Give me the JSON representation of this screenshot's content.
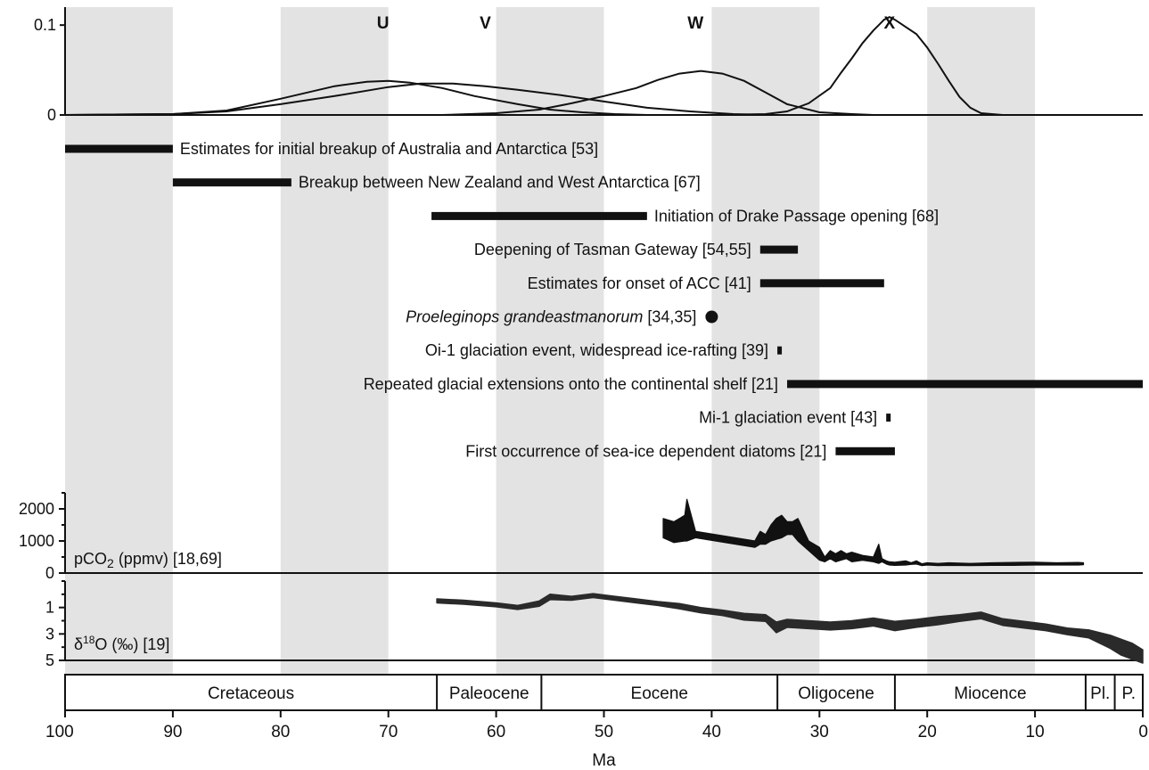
{
  "chart_data": {
    "type": "line",
    "x_axis": {
      "label": "Ma",
      "range": [
        100,
        0
      ],
      "ticks": [
        100,
        90,
        80,
        70,
        60,
        50,
        40,
        30,
        20,
        10,
        0
      ],
      "tick_labels": [
        "100",
        "90",
        "80",
        "70",
        "60",
        "50",
        "40",
        "30",
        "20",
        "10",
        "0"
      ],
      "reversed": true
    },
    "shaded_bands": [
      [
        100,
        90
      ],
      [
        80,
        70
      ],
      [
        60,
        50
      ],
      [
        40,
        30
      ],
      [
        20,
        10
      ]
    ],
    "shade_color": "#e3e3e3",
    "ink_color": "#111111",
    "density_panel": {
      "y_ticks": [
        0,
        0.1
      ],
      "y_tick_labels": [
        "0",
        "0.1"
      ],
      "ylim": [
        0,
        0.12
      ],
      "curves": [
        {
          "name": "U",
          "x": [
            100,
            90,
            85,
            80,
            75,
            72,
            70,
            68,
            65,
            62,
            58,
            55,
            52,
            49,
            46
          ],
          "y": [
            0,
            0.001,
            0.005,
            0.018,
            0.032,
            0.037,
            0.038,
            0.036,
            0.03,
            0.021,
            0.012,
            0.006,
            0.003,
            0.001,
            0
          ]
        },
        {
          "name": "V",
          "x": [
            100,
            90,
            85,
            80,
            75,
            70,
            67,
            64,
            61,
            58,
            54,
            50,
            46,
            42,
            38,
            35
          ],
          "y": [
            0,
            0.001,
            0.004,
            0.012,
            0.021,
            0.031,
            0.035,
            0.035,
            0.032,
            0.028,
            0.022,
            0.015,
            0.008,
            0.004,
            0.001,
            0
          ]
        },
        {
          "name": "W",
          "x": [
            65,
            60,
            56,
            53,
            50,
            47,
            45,
            43,
            41,
            39,
            37,
            35,
            33,
            30,
            27,
            25
          ],
          "y": [
            0,
            0.002,
            0.006,
            0.013,
            0.021,
            0.03,
            0.039,
            0.046,
            0.049,
            0.046,
            0.038,
            0.025,
            0.012,
            0.003,
            0.001,
            0
          ]
        },
        {
          "name": "X",
          "x": [
            40,
            35,
            33,
            31,
            29,
            28,
            27,
            26,
            25,
            24.5,
            24,
            23.5,
            23,
            22,
            21,
            20,
            19,
            18,
            17,
            16,
            15,
            14,
            13,
            12
          ],
          "y": [
            0,
            0.001,
            0.004,
            0.013,
            0.03,
            0.047,
            0.063,
            0.08,
            0.094,
            0.1,
            0.106,
            0.109,
            0.106,
            0.098,
            0.09,
            0.075,
            0.057,
            0.038,
            0.02,
            0.008,
            0.002,
            0.001,
            0,
            0
          ]
        }
      ],
      "curve_labels": [
        {
          "text": "U",
          "x": 70.5
        },
        {
          "text": "V",
          "x": 61.0
        },
        {
          "text": "W",
          "x": 41.5
        },
        {
          "text": "X",
          "x": 23.5
        }
      ]
    },
    "events": [
      {
        "text": "Estimates for initial breakup of Australia and Antarctica [53]",
        "start": 100,
        "end": 90,
        "label_side": "right",
        "italic": false
      },
      {
        "text": "Breakup between New Zealand and West Antarctica [67]",
        "start": 90,
        "end": 79,
        "label_side": "right",
        "italic": false
      },
      {
        "text": "Initiation of Drake Passage opening [68]",
        "start": 66,
        "end": 46,
        "label_side": "right",
        "italic": false
      },
      {
        "text": "Deepening of Tasman Gateway [54,55]",
        "start": 35.5,
        "end": 32,
        "label_side": "left",
        "italic": false
      },
      {
        "text": "Estimates for onset of ACC [41]",
        "start": 35.5,
        "end": 24,
        "label_side": "left",
        "italic": false
      },
      {
        "text": "Proeleginops grandeastmanorum",
        "suffix": " [34,35]",
        "point": 40,
        "label_side": "left",
        "italic": true
      },
      {
        "text": "Oi-1 glaciation event, widespread ice-rafting [39]",
        "start": 33.9,
        "end": 33.5,
        "label_side": "left",
        "italic": false
      },
      {
        "text": "Repeated glacial extensions onto the continental shelf [21]",
        "start": 33,
        "end": 0,
        "label_side": "left",
        "italic": false
      },
      {
        "text": "Mi-1 glaciation event [43]",
        "start": 23.8,
        "end": 23.4,
        "label_side": "left",
        "italic": false
      },
      {
        "text": "First occurrence of sea-ice dependent diatoms [21]",
        "start": 28.5,
        "end": 23,
        "label_side": "left",
        "italic": false
      }
    ],
    "co2_panel": {
      "label_main": "pCO",
      "label_sub": "2",
      "label_rest": " (ppmv) [18,69]",
      "y_ticks": [
        0,
        1000,
        2000
      ],
      "y_tick_labels": [
        "0",
        "1000",
        "2000"
      ],
      "ylim": [
        0,
        2500
      ],
      "x": [
        44.5,
        43.5,
        42.5,
        42.3,
        41.5,
        36,
        35.5,
        35,
        34.5,
        34,
        33.5,
        33,
        32.5,
        32,
        31,
        30,
        29.5,
        29,
        28.5,
        28,
        27.5,
        27,
        26,
        25,
        24.5,
        24.2,
        23.8,
        23.5,
        23,
        22,
        21.5,
        21,
        20.5,
        20,
        19,
        18,
        16,
        14,
        12,
        10,
        8,
        6,
        5.5
      ],
      "lower": [
        1100,
        950,
        1000,
        1000,
        1100,
        800,
        900,
        900,
        1000,
        1050,
        1100,
        1200,
        1200,
        1000,
        700,
        400,
        350,
        450,
        350,
        400,
        450,
        350,
        400,
        350,
        300,
        350,
        280,
        250,
        240,
        250,
        270,
        280,
        230,
        250,
        230,
        240,
        230,
        240,
        240,
        250,
        250,
        250,
        260
      ],
      "upper": [
        1700,
        1600,
        1800,
        2300,
        1300,
        1000,
        1300,
        1200,
        1500,
        1700,
        1800,
        1600,
        1600,
        1700,
        1000,
        800,
        500,
        700,
        600,
        700,
        600,
        650,
        550,
        500,
        900,
        450,
        380,
        350,
        340,
        380,
        320,
        380,
        290,
        320,
        300,
        320,
        300,
        320,
        330,
        340,
        320,
        330,
        320
      ]
    },
    "d18o_panel": {
      "label_main": "δ",
      "label_sup": "18",
      "label_rest": "O (‰) [19]",
      "y_ticks": [
        1,
        3,
        5
      ],
      "y_tick_labels": [
        "1",
        "3",
        "5"
      ],
      "ylim_top": -1,
      "ylim_bottom": 5,
      "x": [
        65.5,
        63,
        60,
        58,
        56,
        55,
        53,
        51,
        49,
        47,
        45,
        43,
        41,
        39,
        37,
        35,
        34,
        33,
        31,
        29,
        27,
        25,
        23,
        21,
        19,
        17,
        15,
        13,
        11,
        9,
        7,
        5,
        4,
        3,
        2,
        1,
        0
      ],
      "y": [
        0.5,
        0.6,
        0.8,
        1.0,
        0.7,
        0.2,
        0.3,
        0.1,
        0.3,
        0.5,
        0.7,
        0.9,
        1.2,
        1.4,
        1.7,
        1.8,
        2.5,
        2.2,
        2.3,
        2.4,
        2.3,
        2.1,
        2.4,
        2.2,
        2.0,
        1.8,
        1.6,
        2.1,
        2.3,
        2.5,
        2.8,
        3.0,
        3.3,
        3.6,
        4.0,
        4.3,
        4.7
      ],
      "spread": [
        0.3,
        0.3,
        0.3,
        0.3,
        0.4,
        0.4,
        0.3,
        0.3,
        0.3,
        0.3,
        0.3,
        0.4,
        0.4,
        0.4,
        0.5,
        0.5,
        0.8,
        0.6,
        0.6,
        0.6,
        0.6,
        0.6,
        0.7,
        0.6,
        0.6,
        0.5,
        0.5,
        0.5,
        0.5,
        0.5,
        0.5,
        0.6,
        0.8,
        1.0,
        1.2,
        1.2,
        1.0
      ]
    },
    "epochs": [
      {
        "name": "Cretaceous",
        "start": 100,
        "end": 65.5
      },
      {
        "name": "Paleocene",
        "start": 65.5,
        "end": 55.8
      },
      {
        "name": "Eocene",
        "start": 55.8,
        "end": 33.9
      },
      {
        "name": "Oligocene",
        "start": 33.9,
        "end": 23.0
      },
      {
        "name": "Miocence",
        "start": 23.0,
        "end": 5.3
      },
      {
        "name": "Pl.",
        "start": 5.3,
        "end": 2.6
      },
      {
        "name": "P.",
        "start": 2.6,
        "end": 0
      }
    ]
  }
}
